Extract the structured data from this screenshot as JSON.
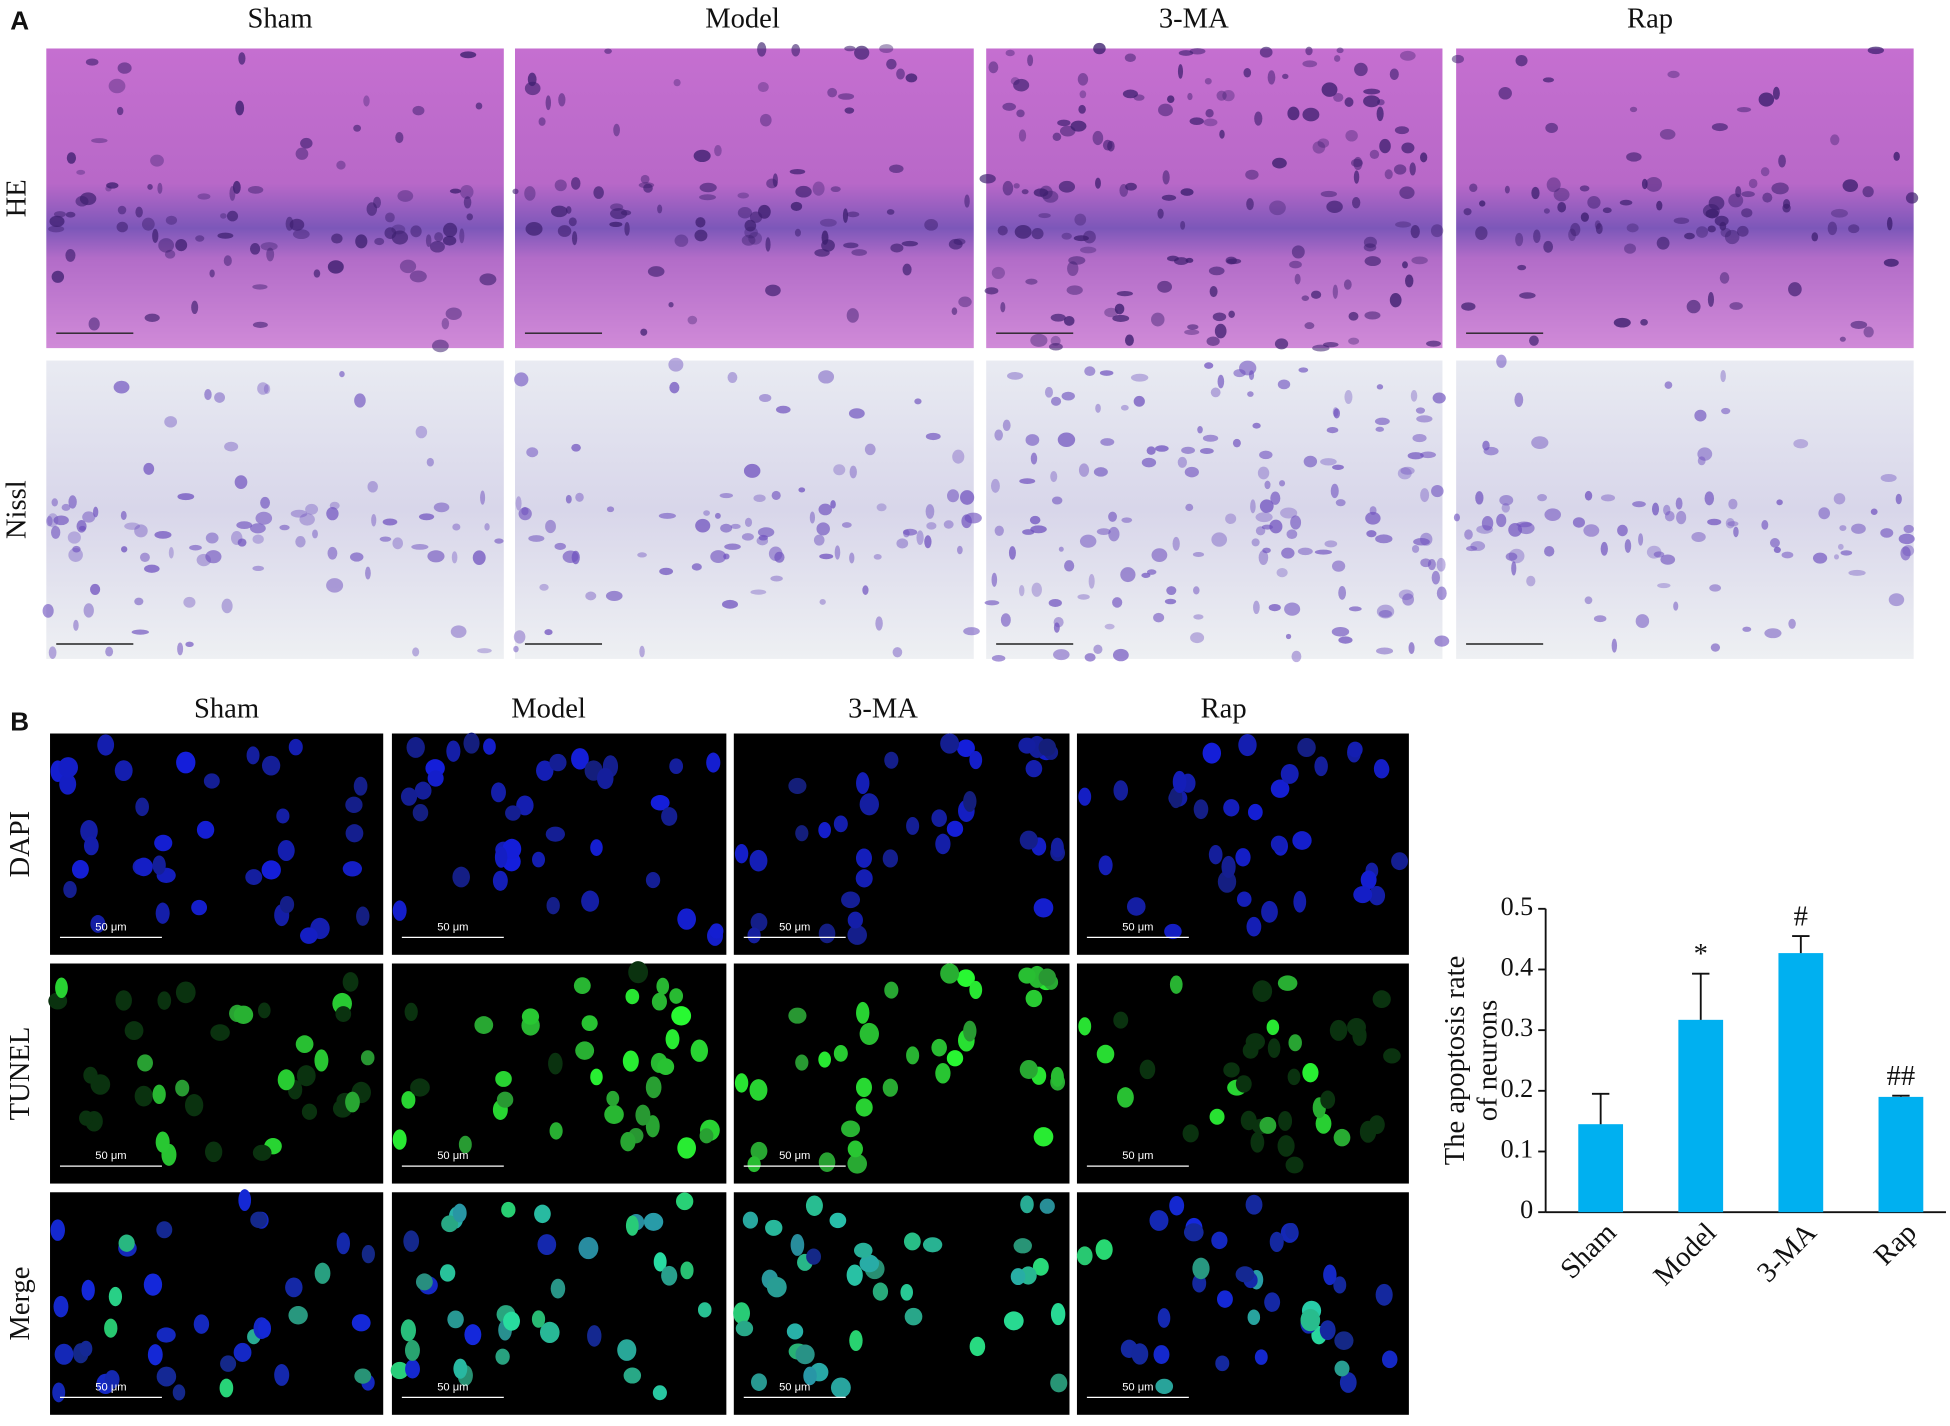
{
  "panel_a": {
    "label": "A",
    "columns": [
      "Sham",
      "Model",
      "3-MA",
      "Rap"
    ],
    "rows": [
      "HE",
      "Nissl"
    ]
  },
  "panel_b": {
    "label": "B",
    "columns": [
      "Sham",
      "Model",
      "3-MA",
      "Rap"
    ],
    "rows": [
      "DAPI",
      "TUNEL",
      "Merge"
    ],
    "scale_label": "50 μm"
  },
  "chart_data": {
    "type": "bar",
    "y_label": [
      "The apoptosis rate",
      "of neurons"
    ],
    "categories": [
      "Sham",
      "Model",
      "3-MA",
      "Rap"
    ],
    "values": [
      0.145,
      0.317,
      0.427,
      0.19
    ],
    "errors": [
      0.05,
      0.076,
      0.028,
      0.002
    ],
    "annotations": [
      null,
      "*",
      "#",
      "##"
    ],
    "color": "#00b0f0",
    "ylim": [
      0,
      0.5
    ],
    "yticks": [
      0,
      0.1,
      0.2,
      0.3,
      0.4,
      0.5
    ],
    "grid": false
  }
}
